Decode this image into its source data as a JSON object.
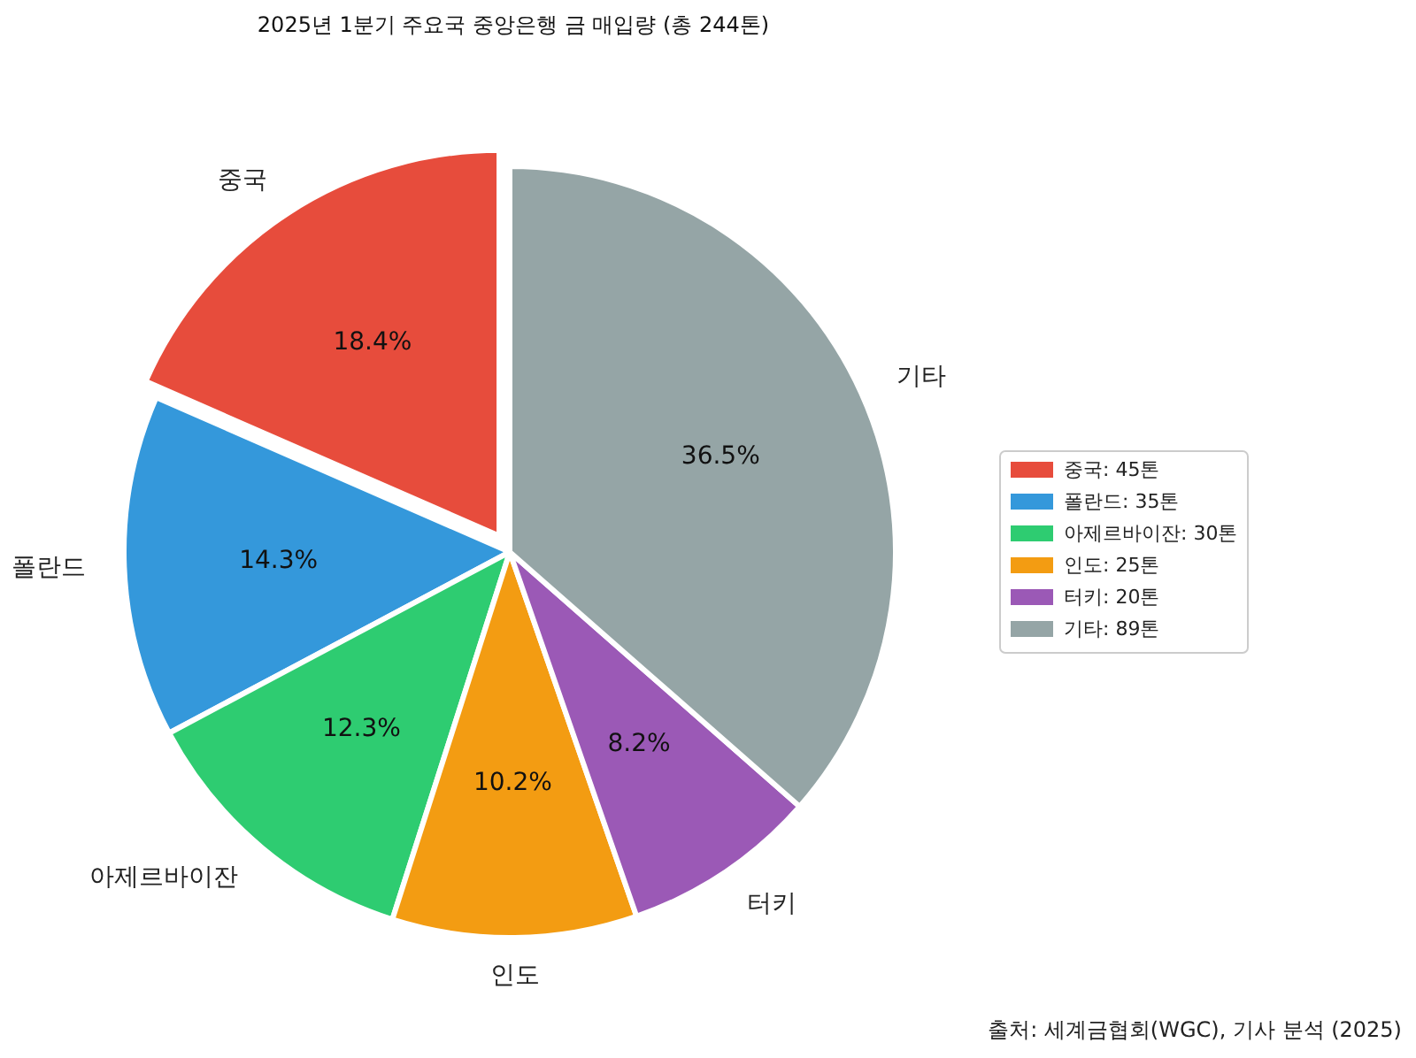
{
  "chart_data": {
    "type": "pie",
    "title": "2025년 1분기 주요국 중앙은행 금 매입량 (총 244톤)",
    "categories": [
      "중국",
      "폴란드",
      "아제르바이잔",
      "인도",
      "터키",
      "기타"
    ],
    "values": [
      18.44,
      14.34,
      12.3,
      10.25,
      8.2,
      36.47
    ],
    "colors": [
      "#e74c3c",
      "#3498db",
      "#2ecc71",
      "#f39c12",
      "#9b59b6",
      "#95a5a6"
    ],
    "value_labels": [
      "18.4%",
      "14.3%",
      "12.3%",
      "10.2%",
      "8.2%",
      "36.5%"
    ],
    "annotations": [
      "중국: 45톤",
      "폴란드: 35톤",
      "아제르바이잔: 30톤",
      "인도: 25톤",
      "터키: 20톤",
      "기타: 89톤",
      "출처: 세계금협회(WGC), 기사 분석 (2025)"
    ]
  }
}
